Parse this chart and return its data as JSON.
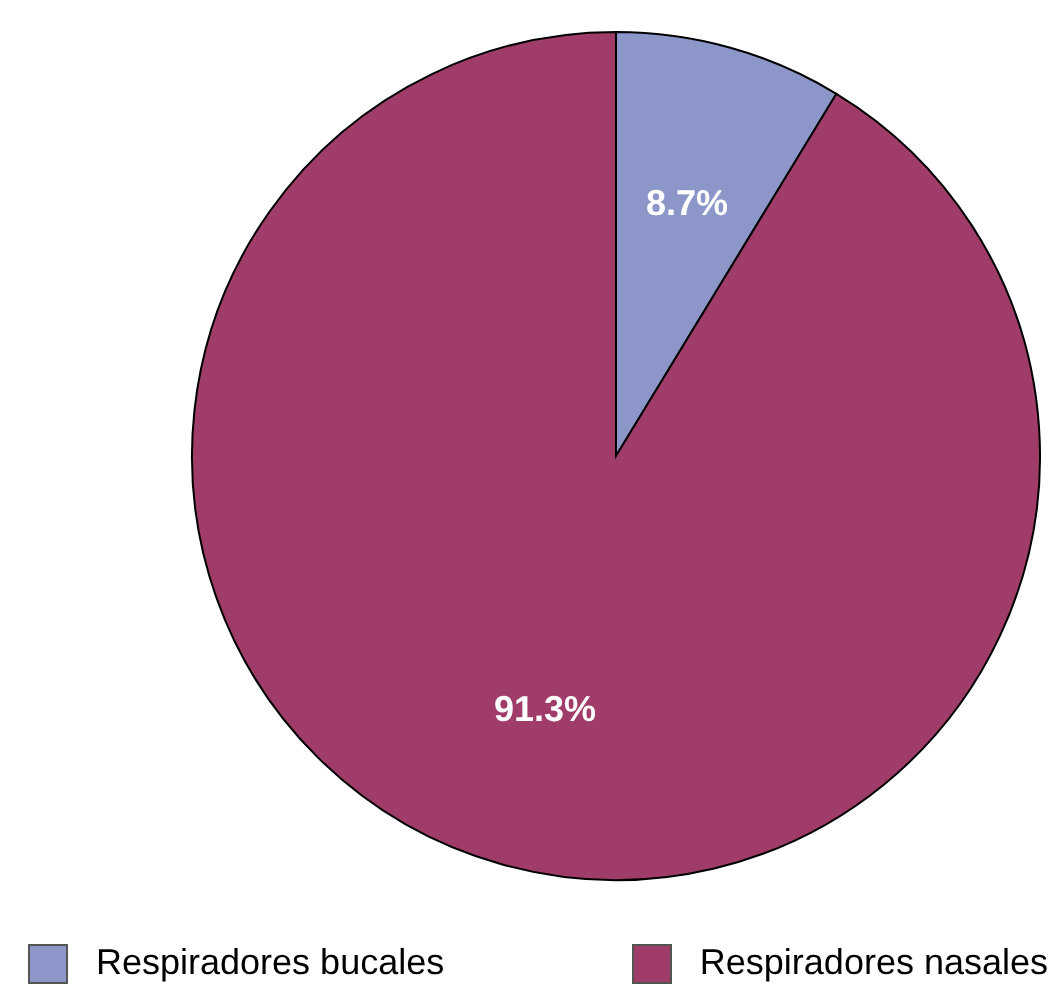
{
  "chart_data": {
    "type": "pie",
    "categories": [
      "Respiradores bucales",
      "Respiradores nasales"
    ],
    "values": [
      8.7,
      91.3
    ],
    "colors": [
      "#8c96c8",
      "#a03c6a"
    ],
    "value_labels": [
      "8.7%",
      "91.3%"
    ],
    "legend": "bottom"
  }
}
